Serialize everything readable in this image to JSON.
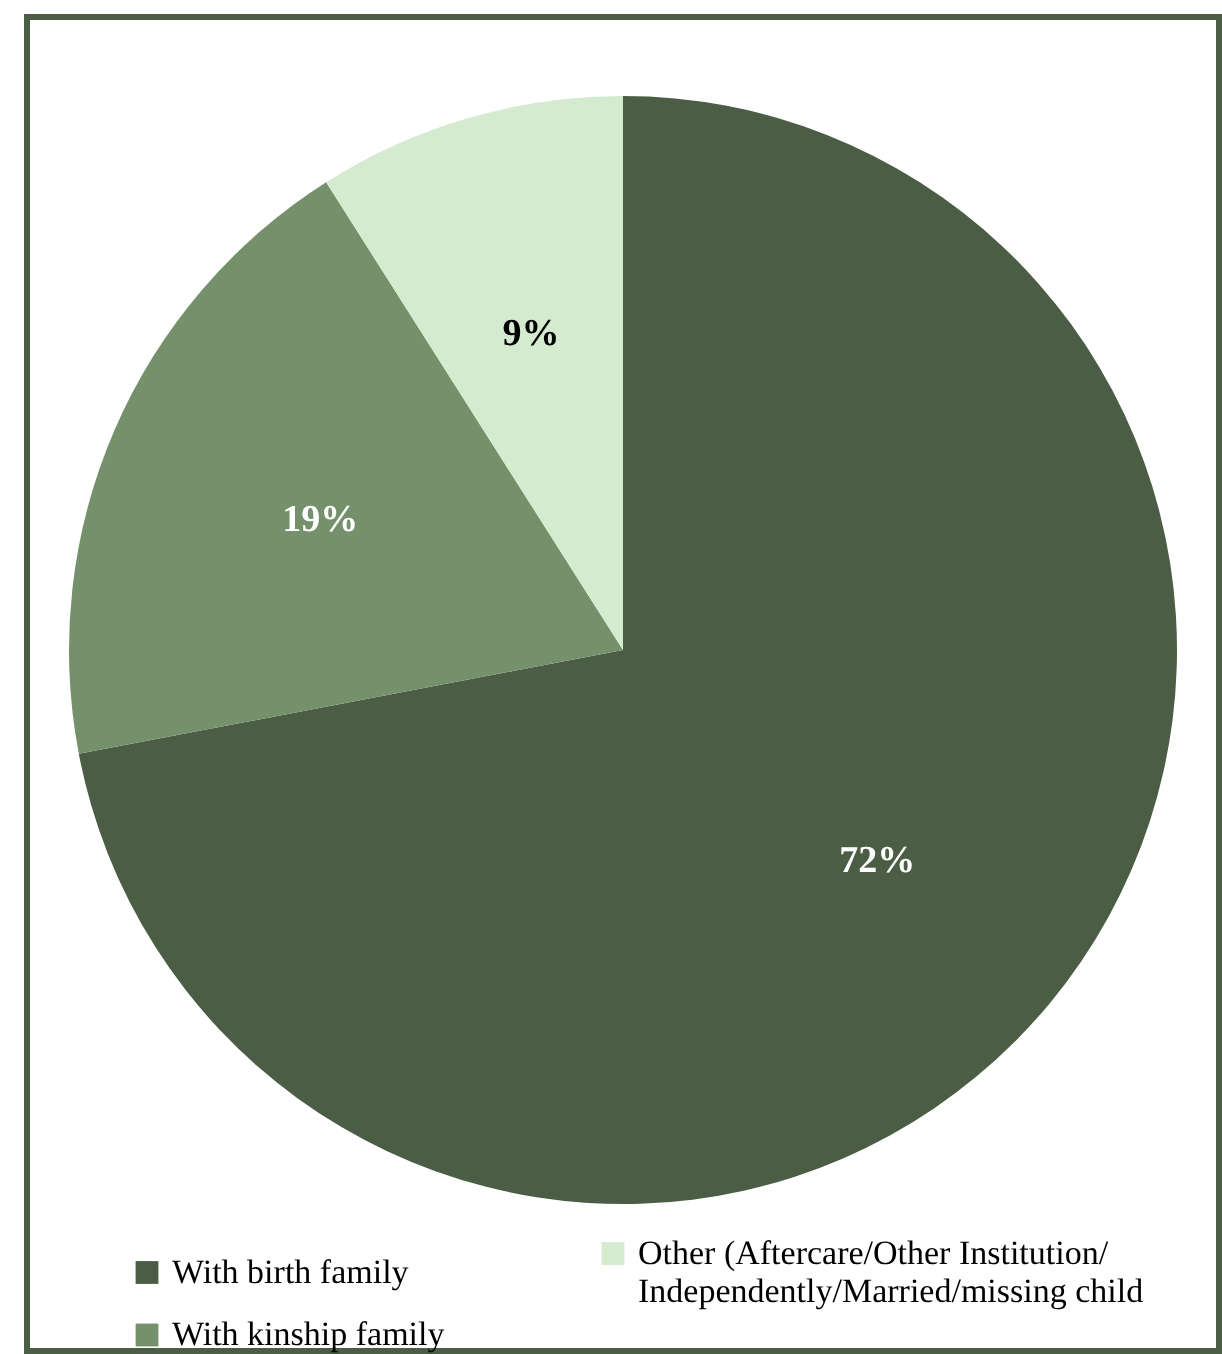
{
  "chart_data": {
    "type": "pie",
    "categories": [
      "With birth family",
      "With kinship family",
      "Other (Aftercare/Other Institution/ Independently/Married/missing child"
    ],
    "values": [
      72,
      19,
      9
    ],
    "colors": [
      "#4b5e45",
      "#75916b",
      "#d5ebd0"
    ],
    "value_labels": [
      "72%",
      "19%",
      "9%"
    ],
    "legend": "bottom"
  }
}
